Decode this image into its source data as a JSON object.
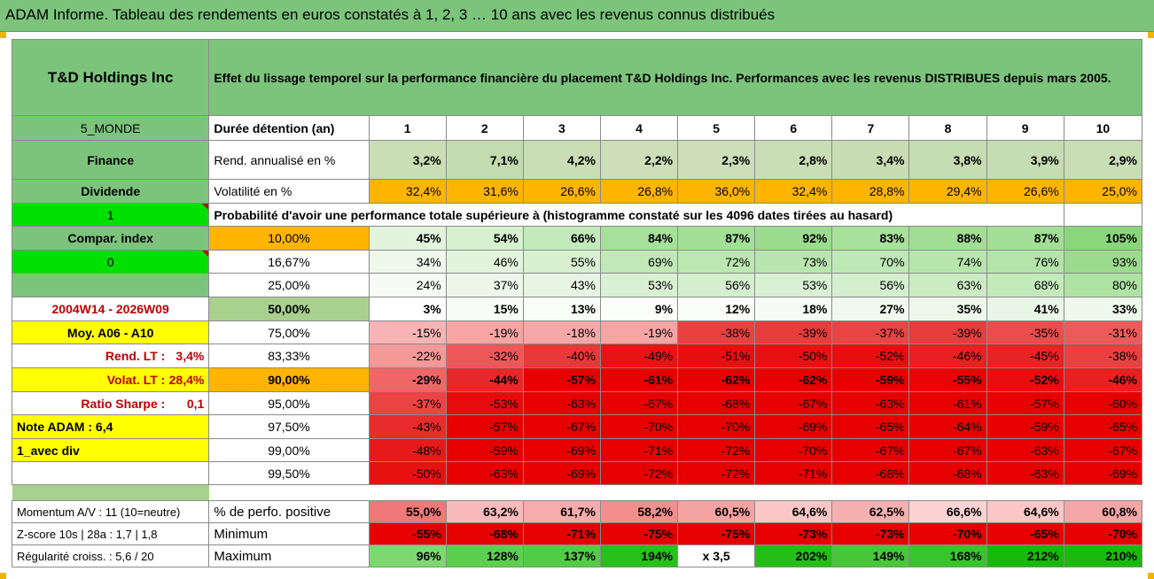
{
  "title": "ADAM Informe. Tableau des rendements en euros constatés à 1, 2, 3 … 10 ans avec les revenus connus distribués",
  "company": "T&D Holdings Inc",
  "description": "Effet du lissage temporel sur la performance financière du placement T&D Holdings Inc. Performances avec les revenus DISTRIBUES depuis mars 2005.",
  "colors": {
    "header_green": "#7cc47c",
    "light_green": "#a9d18e",
    "orange": "#ffb400",
    "yellow": "#ffff00",
    "red_text": "#c00000"
  },
  "rows": [
    {
      "left": "5_MONDE",
      "label": "Durée détention (an)",
      "values": [
        "1",
        "2",
        "3",
        "4",
        "5",
        "6",
        "7",
        "8",
        "9",
        "10"
      ]
    },
    {
      "left": "Finance",
      "label": "Rend. annualisé en %",
      "values": [
        "3,2%",
        "7,1%",
        "4,2%",
        "2,2%",
        "2,3%",
        "2,8%",
        "3,4%",
        "3,8%",
        "3,9%",
        "2,9%"
      ],
      "colors": [
        "#c9deb5",
        "#c4dbb0",
        "#c9deb5",
        "#ccdfb8",
        "#ccdfb8",
        "#cadeb6",
        "#c8ddb3",
        "#c6dcb1",
        "#c6dcb1",
        "#cadeb6"
      ]
    },
    {
      "left": "Dividende",
      "label": "Volatilité en %",
      "values": [
        "32,4%",
        "31,6%",
        "26,6%",
        "26,8%",
        "36,0%",
        "32,4%",
        "28,8%",
        "29,4%",
        "26,6%",
        "25,0%"
      ]
    },
    {
      "left": "1",
      "label": "Probabilité d'avoir une performance totale supérieure à (histogramme constaté sur les 4096 dates tirées au hasard)"
    },
    {
      "left": "Compar. index",
      "label": "10,00%",
      "values": [
        "45%",
        "54%",
        "66%",
        "84%",
        "87%",
        "92%",
        "83%",
        "88%",
        "87%",
        "105%"
      ],
      "colors": [
        "#e2f4dd",
        "#d6f0d0",
        "#c3eabb",
        "#a6e09a",
        "#a3df97",
        "#9cdc8f",
        "#a8e19c",
        "#a1de94",
        "#a3df97",
        "#8ad67b"
      ]
    },
    {
      "left": "0",
      "label": "16,67%",
      "values": [
        "34%",
        "46%",
        "55%",
        "69%",
        "72%",
        "73%",
        "70%",
        "74%",
        "76%",
        "93%"
      ],
      "colors": [
        "#eef8eb",
        "#e2f4dd",
        "#d6f0d0",
        "#c0e9b7",
        "#bbe7b1",
        "#b9e6af",
        "#bee8b5",
        "#b7e6ad",
        "#b3e4a9",
        "#9bdb8e"
      ]
    },
    {
      "left": "",
      "label": "25,00%",
      "values": [
        "24%",
        "37%",
        "43%",
        "53%",
        "56%",
        "53%",
        "56%",
        "63%",
        "68%",
        "80%"
      ],
      "colors": [
        "#f6fbf5",
        "#ecf7e9",
        "#e6f5e2",
        "#d9f1d3",
        "#d4efce",
        "#d9f1d3",
        "#d4efce",
        "#cbecc3",
        "#c3eabb",
        "#afe3a4"
      ]
    },
    {
      "left": "2004W14 - 2026W09",
      "label": "50,00%",
      "values": [
        "3%",
        "15%",
        "13%",
        "9%",
        "12%",
        "18%",
        "27%",
        "35%",
        "41%",
        "33%"
      ],
      "colors": [
        "#ffffff",
        "#f8fcf7",
        "#f9fdf8",
        "#fcfefc",
        "#fafdf9",
        "#f6fbf5",
        "#f1f9ef",
        "#edf8ea",
        "#e8f6e5",
        "#eef8eb"
      ]
    },
    {
      "left": "Moy. A06 - A10",
      "label": "75,00%",
      "values": [
        "-15%",
        "-19%",
        "-18%",
        "-19%",
        "-38%",
        "-39%",
        "-37%",
        "-39%",
        "-35%",
        "-31%"
      ],
      "colors": [
        "#f8b4b4",
        "#f6a4a4",
        "#f6a8a8",
        "#f6a4a4",
        "#ea4040",
        "#e93c3c",
        "#eb4444",
        "#e93c3c",
        "#ec4c4c",
        "#ee5a5a"
      ]
    },
    {
      "left": "Rend. LT :",
      "leftval": "3,4%",
      "label": "83,33%",
      "values": [
        "-22%",
        "-32%",
        "-40%",
        "-49%",
        "-51%",
        "-50%",
        "-52%",
        "-46%",
        "-45%",
        "-38%"
      ],
      "colors": [
        "#f59898",
        "#ee5858",
        "#e83838",
        "#e61414",
        "#e61010",
        "#e61212",
        "#e60e0e",
        "#e72020",
        "#e72424",
        "#ea4040"
      ]
    },
    {
      "left": "Volat. LT :",
      "leftval": "28,4%",
      "label": "90,00%",
      "values": [
        "-29%",
        "-44%",
        "-57%",
        "-61%",
        "-62%",
        "-62%",
        "-59%",
        "-55%",
        "-52%",
        "-46%"
      ],
      "colors": [
        "#f06666",
        "#e72828",
        "#e60000",
        "#e60000",
        "#e60000",
        "#e60000",
        "#e60000",
        "#e60404",
        "#e60e0e",
        "#e72020"
      ]
    },
    {
      "left": "Ratio Sharpe :",
      "leftval": "0,1",
      "label": "95,00%",
      "values": [
        "-37%",
        "-53%",
        "-63%",
        "-67%",
        "-68%",
        "-67%",
        "-63%",
        "-61%",
        "-57%",
        "-60%"
      ],
      "colors": [
        "#eb4444",
        "#e60c0c",
        "#e60000",
        "#e60000",
        "#e60000",
        "#e60000",
        "#e60000",
        "#e60000",
        "#e60000",
        "#e60000"
      ]
    },
    {
      "left": "Note ADAM : 6,4",
      "label": "97,50%",
      "values": [
        "-43%",
        "-57%",
        "-67%",
        "-70%",
        "-70%",
        "-69%",
        "-65%",
        "-64%",
        "-59%",
        "-65%"
      ],
      "colors": [
        "#e82c2c",
        "#e60000",
        "#e60000",
        "#e60000",
        "#e60000",
        "#e60000",
        "#e60000",
        "#e60000",
        "#e60000",
        "#e60000"
      ]
    },
    {
      "left": "1_avec div",
      "label": "99,00%",
      "values": [
        "-48%",
        "-59%",
        "-69%",
        "-71%",
        "-72%",
        "-70%",
        "-67%",
        "-67%",
        "-63%",
        "-67%"
      ],
      "colors": [
        "#e61a1a",
        "#e60000",
        "#e60000",
        "#e60000",
        "#e60000",
        "#e60000",
        "#e60000",
        "#e60000",
        "#e60000",
        "#e60000"
      ]
    },
    {
      "left": "",
      "label": "99,50%",
      "values": [
        "-50%",
        "-63%",
        "-69%",
        "-72%",
        "-72%",
        "-71%",
        "-68%",
        "-68%",
        "-63%",
        "-69%"
      ],
      "colors": [
        "#e61212",
        "#e60000",
        "#e60000",
        "#e60000",
        "#e60000",
        "#e60000",
        "#e60000",
        "#e60000",
        "#e60000",
        "#e60000"
      ]
    }
  ],
  "bottom": [
    {
      "left": "Momentum A/V : 11 (10=neutre)",
      "label": "% de perfo. positive",
      "values": [
        "55,0%",
        "63,2%",
        "61,7%",
        "58,2%",
        "60,5%",
        "64,6%",
        "62,5%",
        "66,6%",
        "64,6%",
        "60,8%"
      ],
      "colors": [
        "#f07878",
        "#f8baba",
        "#f6acac",
        "#f28e8e",
        "#f4a2a2",
        "#fac6c6",
        "#f6b0b0",
        "#fcd2d2",
        "#fac6c6",
        "#f4a6a6"
      ]
    },
    {
      "left": "Z-score 10s | 28a : 1,7 | 1,8",
      "label": "Minimum",
      "values": [
        "-55%",
        "-68%",
        "-71%",
        "-75%",
        "-75%",
        "-73%",
        "-73%",
        "-70%",
        "-65%",
        "-70%"
      ],
      "colors": [
        "#e60000",
        "#e60000",
        "#e60000",
        "#e60000",
        "#e60000",
        "#e60000",
        "#e60000",
        "#e60000",
        "#e60000",
        "#e60000"
      ]
    },
    {
      "left": "Régularité croiss. : 5,6 / 20",
      "label": "Maximum",
      "values": [
        "96%",
        "128%",
        "137%",
        "194%",
        "x 3,5",
        "202%",
        "149%",
        "168%",
        "212%",
        "210%"
      ],
      "colors": [
        "#7ed870",
        "#5cd04e",
        "#52cc44",
        "#28c01a",
        "#ffffff",
        "#24be16",
        "#46c838",
        "#38c42a",
        "#18ba0a",
        "#1aba0c"
      ]
    }
  ]
}
